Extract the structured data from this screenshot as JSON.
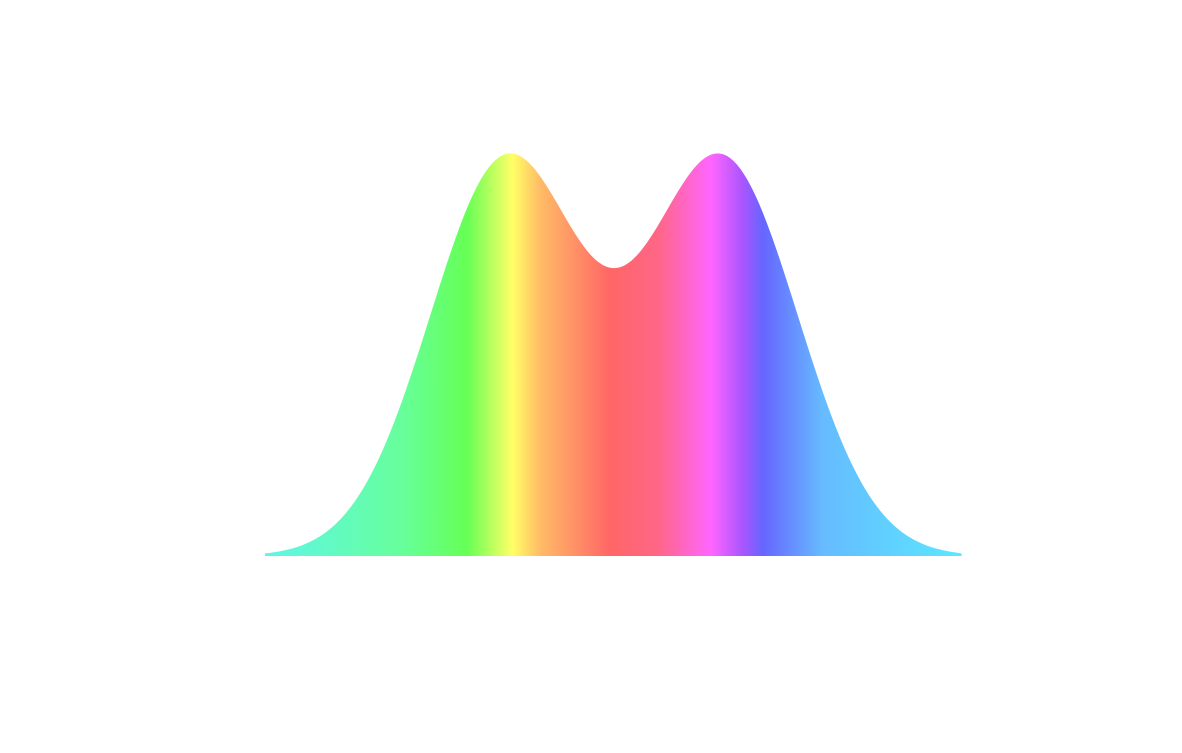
{
  "image": {
    "subject": "bimodal-rainbow-curve",
    "background_color": "#ffffff",
    "gradient_colors": [
      "#5ff5ea",
      "#66ff99",
      "#66ff55",
      "#ffff66",
      "#ffbb66",
      "#ff6666",
      "#ff6688",
      "#ff66ff",
      "#aa55ff",
      "#6666ff",
      "#66bbff",
      "#5ae8ff"
    ]
  }
}
